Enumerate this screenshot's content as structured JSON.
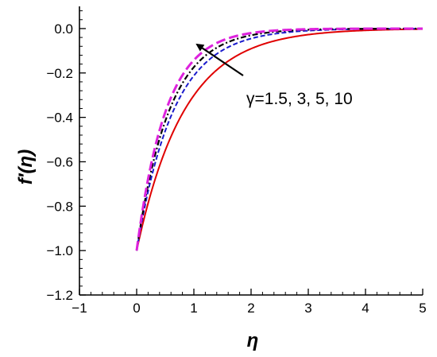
{
  "chart_data": {
    "type": "line",
    "xlabel": "η",
    "ylabel": "f′(η)",
    "xlim": [
      -1,
      5
    ],
    "ylim": [
      -1.2,
      0.1
    ],
    "x_ticks": [
      -1,
      0,
      1,
      2,
      3,
      4,
      5
    ],
    "x_tick_labels": [
      "−1",
      "0",
      "1",
      "2",
      "3",
      "4",
      "5"
    ],
    "y_ticks": [
      -1.2,
      -1.0,
      -0.8,
      -0.6,
      -0.4,
      -0.2,
      0.0
    ],
    "y_tick_labels": [
      "−1.2",
      "−1.0",
      "−0.8",
      "−0.6",
      "−0.4",
      "−0.2",
      "0.0"
    ],
    "grid": false,
    "annotation": {
      "text": "γ=1.5, 3, 5, 10",
      "arrow": "points from curves toward faster-decay curve (increasing γ)"
    },
    "series": [
      {
        "decay": 1.2,
        "color": "#e00000",
        "dash": "solid",
        "x": [
          0,
          0.5,
          1,
          1.5,
          2,
          2.5,
          3,
          3.5,
          4,
          4.5,
          5
        ],
        "values": [
          -1.0,
          -0.549,
          -0.301,
          -0.165,
          -0.091,
          -0.05,
          -0.027,
          -0.015,
          -0.008,
          -0.005,
          -0.002
        ]
      },
      {
        "decay": 1.55,
        "color": "#1a1acc",
        "dash": "dashed",
        "x": [
          0,
          0.5,
          1,
          1.5,
          2,
          2.5,
          3,
          3.5,
          4,
          4.5,
          5
        ],
        "values": [
          -1.0,
          -0.461,
          -0.212,
          -0.098,
          -0.045,
          -0.021,
          -0.01,
          -0.004,
          -0.002,
          -0.001,
          0.0
        ]
      },
      {
        "decay": 1.75,
        "color": "#000000",
        "dash": "dashdot",
        "x": [
          0,
          0.5,
          1,
          1.5,
          2,
          2.5,
          3,
          3.5,
          4,
          4.5,
          5
        ],
        "values": [
          -1.0,
          -0.417,
          -0.174,
          -0.072,
          -0.03,
          -0.013,
          -0.005,
          -0.002,
          -0.001,
          0.0,
          0.0
        ]
      },
      {
        "decay": 1.95,
        "color": "#dd22dd",
        "dash": "longdash",
        "x": [
          0,
          0.5,
          1,
          1.5,
          2,
          2.5,
          3,
          3.5,
          4,
          4.5,
          5
        ],
        "values": [
          -1.0,
          -0.377,
          -0.142,
          -0.054,
          -0.02,
          -0.008,
          -0.003,
          -0.001,
          0.0,
          0.0,
          0.0
        ]
      }
    ]
  }
}
